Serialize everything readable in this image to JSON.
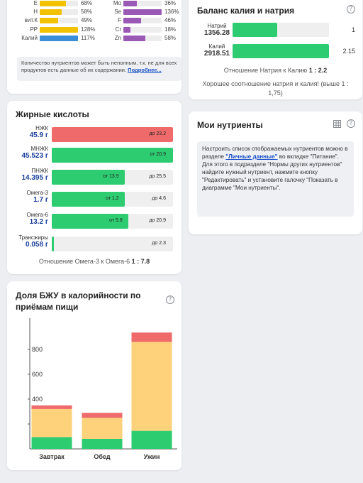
{
  "vitamins_minerals": {
    "left": [
      {
        "name": "E",
        "pct": "68%",
        "value": 68,
        "color": "#f2c200"
      },
      {
        "name": "H",
        "pct": "58%",
        "value": 58,
        "color": "#f2c200"
      },
      {
        "name": "вит.К",
        "pct": "49%",
        "value": 49,
        "color": "#f2c200"
      },
      {
        "name": "PP",
        "pct": "128%",
        "value": 128,
        "color": "#f2c200"
      },
      {
        "name": "Калий",
        "pct": "117%",
        "value": 117,
        "color": "#3a8fd8"
      }
    ],
    "right": [
      {
        "name": "Mo",
        "pct": "36%",
        "value": 36,
        "color": "#9b59b6"
      },
      {
        "name": "Se",
        "pct": "136%",
        "value": 136,
        "color": "#9b59b6"
      },
      {
        "name": "F",
        "pct": "46%",
        "value": 46,
        "color": "#9b59b6"
      },
      {
        "name": "Cr",
        "pct": "18%",
        "value": 18,
        "color": "#9b59b6"
      },
      {
        "name": "Zn",
        "pct": "58%",
        "value": 58,
        "color": "#9b59b6"
      }
    ],
    "note_text": "Количество нутриентов может быть неполным, т.к. не для всех продуктов есть данные об их содержании.",
    "note_link": "Подробнее..."
  },
  "fatty_acids": {
    "title": "Жирные кислоты",
    "rows": [
      {
        "name": "НЖК",
        "value": "45.9 г",
        "fill": 1.0,
        "color": "#ef6b6b",
        "min": "",
        "max": "до 23.2"
      },
      {
        "name": "МНЖК",
        "value": "45.523 г",
        "fill": 1.0,
        "color": "#2ecc71",
        "min": "от 20.9",
        "max": ""
      },
      {
        "name": "ПНЖК",
        "value": "14.395 г",
        "fill": 0.6,
        "color": "#2ecc71",
        "min": "от 13.9",
        "max": "до 25.5"
      },
      {
        "name": "Омега-3",
        "value": "1.7 г",
        "fill": 0.6,
        "color": "#2ecc71",
        "min": "от 1.2",
        "max": "до 4.6"
      },
      {
        "name": "Омега-6",
        "value": "13.2 г",
        "fill": 0.63,
        "color": "#2ecc71",
        "min": "от 5.8",
        "max": "до 20.9"
      },
      {
        "name": "Трансжиры",
        "value": "0.058 г",
        "fill": 0.02,
        "color": "#2ecc71",
        "min": "",
        "max": "до 2.3"
      }
    ],
    "ratio_label": "Отношение Омега-3 к Омега-6",
    "ratio_value": "1 : 7.8"
  },
  "bju_card": {
    "title": "Доля БЖУ в калорийности по приёмам пищи",
    "help": "?"
  },
  "chart_data": {
    "type": "bar",
    "stacked": true,
    "categories": [
      "Завтрак",
      "Обед",
      "Ужин"
    ],
    "series": [
      {
        "values": [
          95,
          80,
          145
        ],
        "color": "#2ecc71"
      },
      {
        "values": [
          225,
          170,
          715
        ],
        "color": "#fdd27a"
      },
      {
        "values": [
          30,
          40,
          75
        ],
        "color": "#ef6b6b"
      }
    ],
    "yticks": [
      200,
      400,
      600,
      800
    ],
    "ylim": [
      0,
      1050
    ],
    "grid": false
  },
  "k_na": {
    "title": "Баланс калия и натрия",
    "help": "?",
    "rows": [
      {
        "label": "Натрий",
        "value": "1356.28",
        "fill": 0.46,
        "right": "1"
      },
      {
        "label": "Калий",
        "value": "2918.51",
        "fill": 1.0,
        "right": "2.15"
      }
    ],
    "ratio_label": "Отношение Натрия к Калию",
    "ratio_value": "1 : 2.2",
    "note": "Хорошее соотношение натрия и калия! (выше 1 : 1,75)"
  },
  "my_nutrients": {
    "title": "Мои нутриенты",
    "help": "?",
    "text_1": "Настроить список отображаемых нутриентов можно в разделе",
    "link": "\"Личные данные\"",
    "text_2": "во вкладке \"Питание\". Для этого в подразделе \"Нормы других нутриентов\" найдите нужный нутриент, нажмите кнопку \"Редактировать\" и установите галочку \"Показать в диаграмме \"Мои нутриенты\"."
  }
}
